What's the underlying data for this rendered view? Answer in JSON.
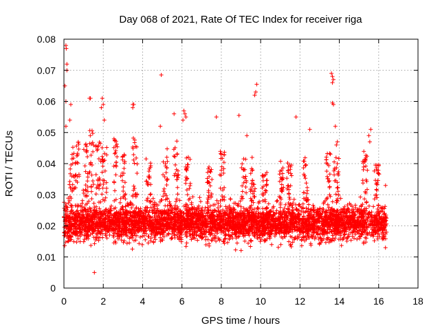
{
  "chart_data": {
    "type": "scatter",
    "title": "Day 068 of 2021, Rate Of TEC Index for receiver riga",
    "xlabel": "GPS time / hours",
    "ylabel": "ROTI / TECUs",
    "xlim": [
      0,
      18
    ],
    "ylim": [
      0,
      0.08
    ],
    "grid": true,
    "marker": "+",
    "color": "#ff0000",
    "x_ticks": [
      {
        "value": 0,
        "label": "0"
      },
      {
        "value": 2,
        "label": "2"
      },
      {
        "value": 4,
        "label": "4"
      },
      {
        "value": 6,
        "label": "6"
      },
      {
        "value": 8,
        "label": "8"
      },
      {
        "value": 10,
        "label": "10"
      },
      {
        "value": 12,
        "label": "12"
      },
      {
        "value": 14,
        "label": "14"
      },
      {
        "value": 16,
        "label": "16"
      },
      {
        "value": 18,
        "label": "18"
      }
    ],
    "y_ticks": [
      {
        "value": 0,
        "label": "0"
      },
      {
        "value": 0.01,
        "label": "0.01"
      },
      {
        "value": 0.02,
        "label": "0.02"
      },
      {
        "value": 0.03,
        "label": "0.03"
      },
      {
        "value": 0.04,
        "label": "0.04"
      },
      {
        "value": 0.05,
        "label": "0.05"
      },
      {
        "value": 0.06,
        "label": "0.06"
      },
      {
        "value": 0.07,
        "label": "0.07"
      },
      {
        "value": 0.08,
        "label": "0.08"
      }
    ],
    "data_range": {
      "x_start": 0,
      "x_end": 16.4,
      "typical_min": 0.008,
      "typical_max": 0.033
    },
    "notable_points": [
      {
        "x": 0.1,
        "y": 0.078
      },
      {
        "x": 0.12,
        "y": 0.077
      },
      {
        "x": 0.05,
        "y": 0.065
      },
      {
        "x": 0.15,
        "y": 0.072
      },
      {
        "x": 0.15,
        "y": 0.07
      },
      {
        "x": 0.1,
        "y": 0.06
      },
      {
        "x": 0.35,
        "y": 0.059
      },
      {
        "x": 0.1,
        "y": 0.052
      },
      {
        "x": 0.3,
        "y": 0.054
      },
      {
        "x": 1.35,
        "y": 0.061
      },
      {
        "x": 1.3,
        "y": 0.061
      },
      {
        "x": 1.95,
        "y": 0.061
      },
      {
        "x": 2.0,
        "y": 0.059
      },
      {
        "x": 1.9,
        "y": 0.058
      },
      {
        "x": 2.05,
        "y": 0.054
      },
      {
        "x": 3.5,
        "y": 0.059
      },
      {
        "x": 3.5,
        "y": 0.058
      },
      {
        "x": 3.55,
        "y": 0.059
      },
      {
        "x": 1.55,
        "y": 0.005
      },
      {
        "x": 4.95,
        "y": 0.0685
      },
      {
        "x": 4.9,
        "y": 0.052
      },
      {
        "x": 5.6,
        "y": 0.056
      },
      {
        "x": 6.1,
        "y": 0.057
      },
      {
        "x": 6.15,
        "y": 0.056
      },
      {
        "x": 6.05,
        "y": 0.054
      },
      {
        "x": 6.2,
        "y": 0.055
      },
      {
        "x": 7.75,
        "y": 0.055
      },
      {
        "x": 8.9,
        "y": 0.0555
      },
      {
        "x": 9.3,
        "y": 0.049
      },
      {
        "x": 9.8,
        "y": 0.0655
      },
      {
        "x": 9.75,
        "y": 0.063
      },
      {
        "x": 9.7,
        "y": 0.062
      },
      {
        "x": 11.8,
        "y": 0.055
      },
      {
        "x": 12.5,
        "y": 0.051
      },
      {
        "x": 13.6,
        "y": 0.069
      },
      {
        "x": 13.65,
        "y": 0.068
      },
      {
        "x": 13.7,
        "y": 0.067
      },
      {
        "x": 13.65,
        "y": 0.066
      },
      {
        "x": 13.7,
        "y": 0.059
      },
      {
        "x": 13.65,
        "y": 0.0595
      },
      {
        "x": 13.8,
        "y": 0.052
      },
      {
        "x": 13.9,
        "y": 0.047
      },
      {
        "x": 13.85,
        "y": 0.046
      },
      {
        "x": 15.6,
        "y": 0.051
      },
      {
        "x": 15.5,
        "y": 0.049
      },
      {
        "x": 15.55,
        "y": 0.047
      },
      {
        "x": 16.35,
        "y": 0.033
      },
      {
        "x": 16.4,
        "y": 0.018
      }
    ],
    "burst_regions": [
      {
        "x": 0.4,
        "peak": 0.048
      },
      {
        "x": 0.65,
        "peak": 0.047
      },
      {
        "x": 1.1,
        "peak": 0.048
      },
      {
        "x": 1.4,
        "peak": 0.052
      },
      {
        "x": 1.75,
        "peak": 0.049
      },
      {
        "x": 2.05,
        "peak": 0.046
      },
      {
        "x": 2.6,
        "peak": 0.048
      },
      {
        "x": 3.0,
        "peak": 0.043
      },
      {
        "x": 3.6,
        "peak": 0.049
      },
      {
        "x": 4.3,
        "peak": 0.042
      },
      {
        "x": 5.15,
        "peak": 0.045
      },
      {
        "x": 5.7,
        "peak": 0.048
      },
      {
        "x": 6.3,
        "peak": 0.043
      },
      {
        "x": 7.4,
        "peak": 0.04
      },
      {
        "x": 8.05,
        "peak": 0.044
      },
      {
        "x": 9.15,
        "peak": 0.043
      },
      {
        "x": 9.6,
        "peak": 0.042
      },
      {
        "x": 10.2,
        "peak": 0.038
      },
      {
        "x": 11.05,
        "peak": 0.042
      },
      {
        "x": 11.45,
        "peak": 0.041
      },
      {
        "x": 12.3,
        "peak": 0.042
      },
      {
        "x": 13.45,
        "peak": 0.045
      },
      {
        "x": 13.85,
        "peak": 0.046
      },
      {
        "x": 15.3,
        "peak": 0.044
      },
      {
        "x": 15.9,
        "peak": 0.04
      }
    ]
  }
}
